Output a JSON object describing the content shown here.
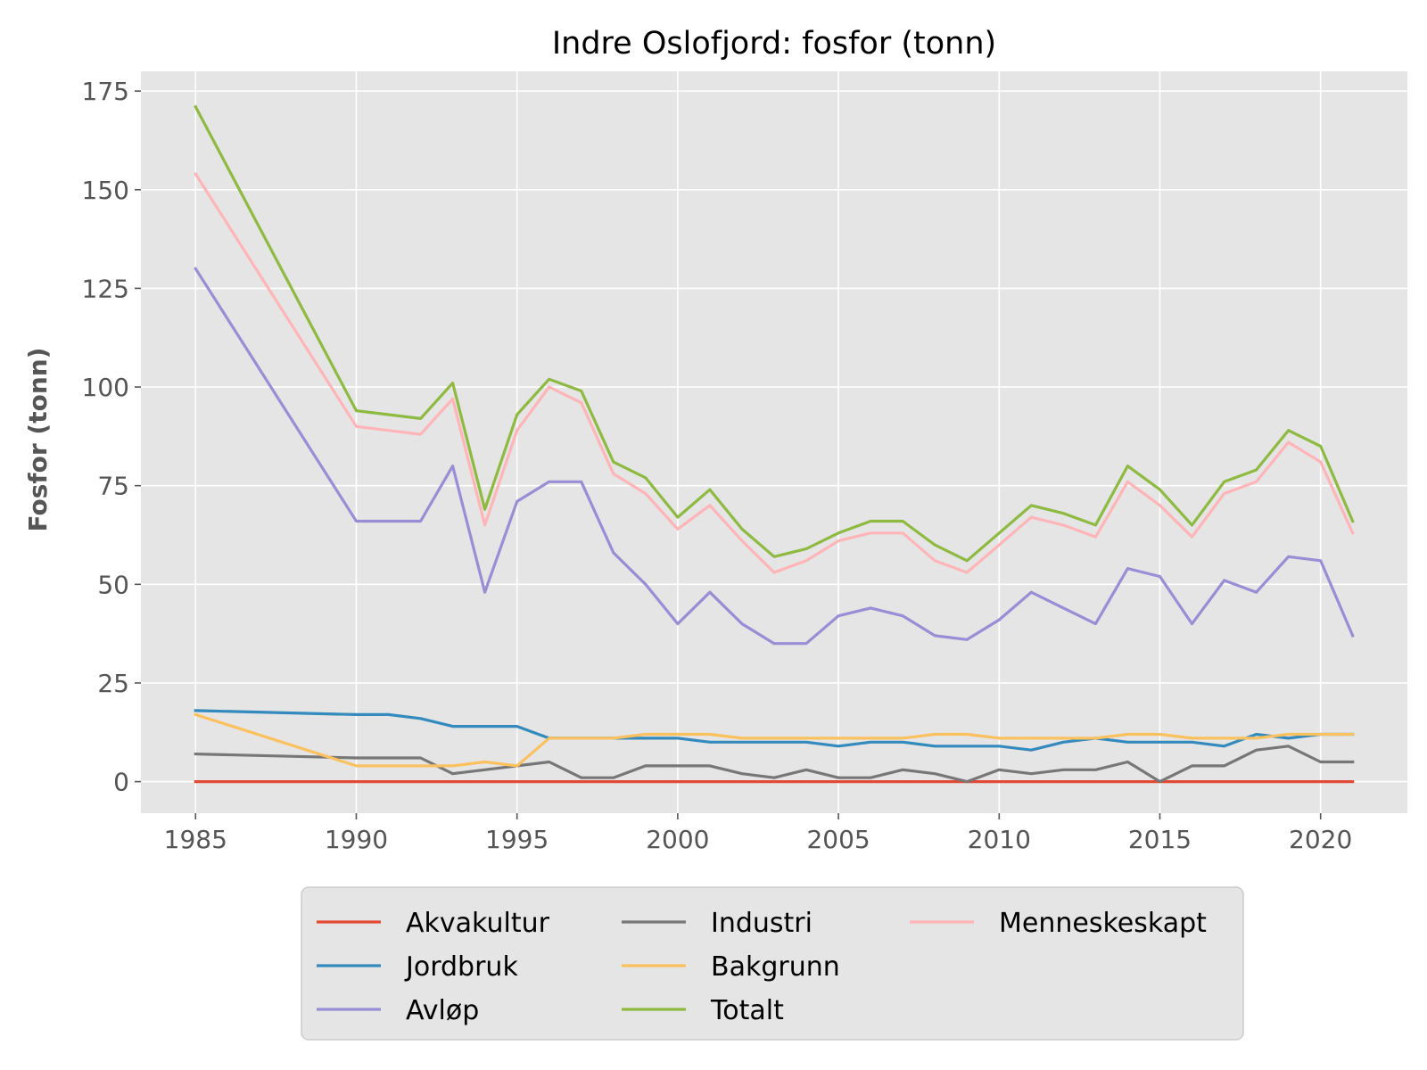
{
  "chart_data": {
    "type": "line",
    "title": "Indre Oslofjord: fosfor (tonn)",
    "xlabel": "",
    "ylabel": "Fosfor (tonn)",
    "xlim": [
      1983.3,
      2022.7
    ],
    "ylim": [
      -8,
      180
    ],
    "x_ticks": [
      1985,
      1990,
      1995,
      2000,
      2005,
      2010,
      2015,
      2020
    ],
    "y_ticks": [
      0,
      25,
      50,
      75,
      100,
      125,
      150,
      175
    ],
    "grid": true,
    "legend_position": "bottom-center",
    "x": [
      1985,
      1990,
      1991,
      1992,
      1993,
      1994,
      1995,
      1996,
      1997,
      1998,
      1999,
      2000,
      2001,
      2002,
      2003,
      2004,
      2005,
      2006,
      2007,
      2008,
      2009,
      2010,
      2011,
      2012,
      2013,
      2014,
      2015,
      2016,
      2017,
      2018,
      2019,
      2020,
      2021
    ],
    "series": [
      {
        "name": "Akvakultur",
        "color": "#E24A33",
        "values": [
          0,
          0,
          0,
          0,
          0,
          0,
          0,
          0,
          0,
          0,
          0,
          0,
          0,
          0,
          0,
          0,
          0,
          0,
          0,
          0,
          0,
          0,
          0,
          0,
          0,
          0,
          0,
          0,
          0,
          0,
          0,
          0,
          0
        ]
      },
      {
        "name": "Jordbruk",
        "color": "#348ABD",
        "values": [
          18,
          17,
          17,
          16,
          14,
          14,
          14,
          11,
          11,
          11,
          11,
          11,
          10,
          10,
          10,
          10,
          9,
          10,
          10,
          9,
          9,
          9,
          8,
          10,
          11,
          10,
          10,
          10,
          9,
          12,
          11,
          12,
          12
        ]
      },
      {
        "name": "Avløp",
        "color": "#988ED5",
        "values": [
          130,
          66,
          66,
          66,
          80,
          48,
          71,
          76,
          76,
          58,
          50,
          40,
          48,
          40,
          35,
          35,
          42,
          44,
          42,
          37,
          36,
          41,
          48,
          44,
          40,
          54,
          52,
          40,
          51,
          48,
          57,
          56,
          37
        ]
      },
      {
        "name": "Industri",
        "color": "#777777",
        "values": [
          7,
          6,
          6,
          6,
          2,
          3,
          4,
          5,
          1,
          1,
          4,
          4,
          4,
          2,
          1,
          3,
          1,
          1,
          3,
          2,
          0,
          3,
          2,
          3,
          3,
          5,
          0,
          4,
          4,
          8,
          9,
          5,
          5
        ]
      },
      {
        "name": "Bakgrunn",
        "color": "#FBC15E",
        "values": [
          17,
          4,
          4,
          4,
          4,
          5,
          4,
          11,
          11,
          11,
          12,
          12,
          12,
          11,
          11,
          11,
          11,
          11,
          11,
          12,
          12,
          11,
          11,
          11,
          11,
          12,
          12,
          11,
          11,
          11,
          12,
          12,
          12
        ]
      },
      {
        "name": "Totalt",
        "color": "#8EBA42",
        "values": [
          171,
          94,
          93,
          92,
          101,
          69,
          93,
          102,
          99,
          81,
          77,
          67,
          74,
          64,
          57,
          59,
          63,
          66,
          66,
          60,
          56,
          63,
          70,
          68,
          65,
          80,
          74,
          65,
          76,
          79,
          89,
          85,
          66
        ]
      },
      {
        "name": "Menneskeskapt",
        "color": "#FFB5B8",
        "values": [
          154,
          90,
          89,
          88,
          97,
          65,
          89,
          100,
          96,
          78,
          73,
          64,
          70,
          61,
          53,
          56,
          61,
          63,
          63,
          56,
          53,
          60,
          67,
          65,
          62,
          76,
          70,
          62,
          73,
          76,
          86,
          81,
          63
        ]
      }
    ],
    "legend_order": [
      "Akvakultur",
      "Jordbruk",
      "Avløp",
      "Industri",
      "Bakgrunn",
      "Totalt",
      "Menneskeskapt"
    ]
  }
}
